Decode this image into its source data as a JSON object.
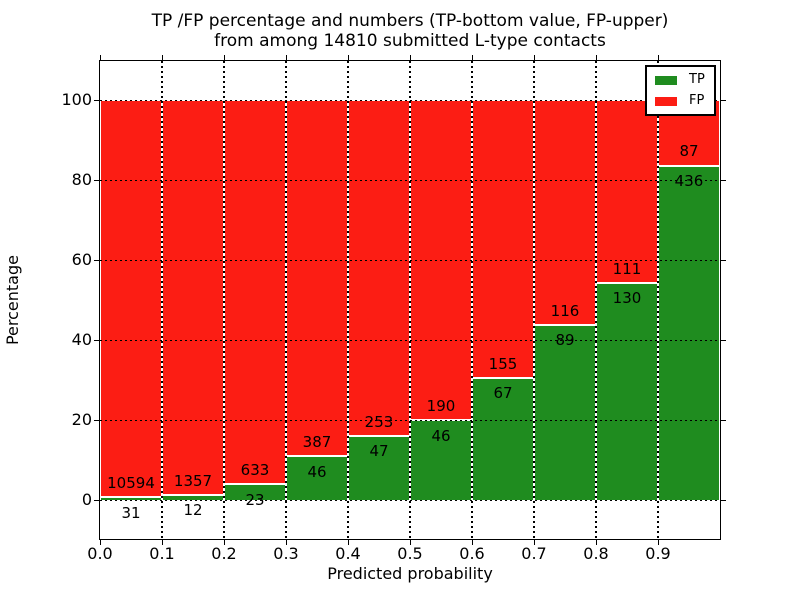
{
  "chart_data": {
    "type": "bar",
    "stacked": true,
    "normalized_to_percent": true,
    "title_line1": "TP /FP percentage and numbers (TP-bottom value, FP-upper)",
    "title_line2": "from among 14810 submitted L-type contacts",
    "xlabel": "Predicted probability",
    "ylabel": "Percentage",
    "total_contacts": 14810,
    "xlim": [
      0.0,
      1.0
    ],
    "ylim": [
      -10,
      110
    ],
    "x_tick_labels": [
      "0.0",
      "0.1",
      "0.2",
      "0.3",
      "0.4",
      "0.5",
      "0.6",
      "0.7",
      "0.8",
      "0.9"
    ],
    "y_tick_labels": [
      "0",
      "20",
      "40",
      "60",
      "80",
      "100"
    ],
    "grid": {
      "style": "dotted",
      "color": "#000000"
    },
    "bar_edge_color": "#ffffff",
    "categories": [
      "0.0-0.1",
      "0.1-0.2",
      "0.2-0.3",
      "0.3-0.4",
      "0.4-0.5",
      "0.5-0.6",
      "0.6-0.7",
      "0.7-0.8",
      "0.8-0.9",
      "0.9-1.0"
    ],
    "series": [
      {
        "name": "TP",
        "color": "#1f8c1f",
        "values": [
          31,
          12,
          23,
          46,
          47,
          46,
          67,
          89,
          130,
          436
        ]
      },
      {
        "name": "FP",
        "color": "#fc1d14",
        "values": [
          10594,
          1357,
          633,
          387,
          253,
          190,
          155,
          116,
          111,
          87
        ]
      }
    ],
    "legend": {
      "position": "upper right",
      "items": [
        {
          "name": "TP",
          "color": "#1f8c1f"
        },
        {
          "name": "FP",
          "color": "#fc1d14"
        }
      ]
    }
  }
}
